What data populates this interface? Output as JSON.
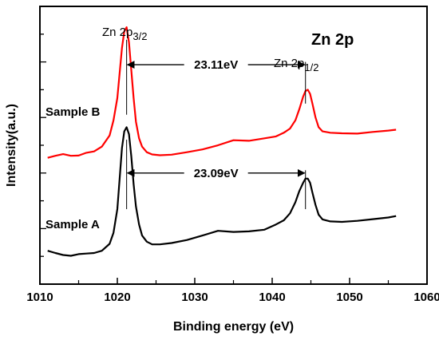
{
  "chart_data": {
    "type": "line",
    "title": "Zn 2p",
    "xlabel": "Binding energy (eV)",
    "ylabel": "Intensity(a.u.)",
    "xlim": [
      1010,
      1060
    ],
    "ylim": [
      0,
      100
    ],
    "x_ticks": [
      "1010",
      "1020",
      "1030",
      "1040",
      "1050",
      "1060"
    ],
    "grid": false,
    "series": [
      {
        "name": "Sample B",
        "color": "#ff0000",
        "x": [
          1011,
          1012,
          1013,
          1014,
          1015,
          1016,
          1017,
          1018,
          1019,
          1019.5,
          1020,
          1020.3,
          1020.6,
          1020.9,
          1021.2,
          1021.5,
          1021.8,
          1022.1,
          1022.4,
          1022.8,
          1023.2,
          1023.8,
          1024.5,
          1025.5,
          1027,
          1029,
          1031,
          1033,
          1035,
          1037,
          1039,
          1040.5,
          1041.5,
          1042.3,
          1043,
          1043.5,
          1044,
          1044.3,
          1044.6,
          1044.9,
          1045.2,
          1045.6,
          1046,
          1046.5,
          1047.5,
          1049,
          1051,
          1053,
          1055,
          1056
        ],
        "y": [
          45.5,
          46.2,
          46.8,
          46.2,
          46.3,
          47.3,
          47.8,
          49.5,
          53.5,
          59,
          67,
          76,
          85,
          91,
          92.5,
          87,
          77,
          67,
          58.5,
          52.5,
          49.5,
          47.5,
          46.7,
          46.4,
          46.6,
          47.5,
          48.5,
          50,
          51.8,
          51.6,
          52.5,
          53.2,
          54.5,
          56,
          59,
          63,
          67.5,
          69.5,
          70,
          68.5,
          65,
          60,
          56.5,
          55,
          54.5,
          54.3,
          54.2,
          54.8,
          55.3,
          55.6
        ]
      },
      {
        "name": "Sample A",
        "color": "#000000",
        "x": [
          1011,
          1012,
          1013,
          1014,
          1015,
          1016,
          1017,
          1018,
          1019,
          1019.5,
          1020,
          1020.3,
          1020.6,
          1020.9,
          1021.2,
          1021.5,
          1021.8,
          1022.1,
          1022.4,
          1022.8,
          1023.2,
          1023.8,
          1024.5,
          1025.5,
          1027,
          1029,
          1031,
          1033,
          1035,
          1037,
          1039,
          1040.5,
          1041.5,
          1042.3,
          1043,
          1043.5,
          1044,
          1044.3,
          1044.6,
          1044.9,
          1045.2,
          1045.6,
          1046,
          1046.5,
          1047.5,
          1049,
          1051,
          1053,
          1055,
          1056
        ],
        "y": [
          12,
          11.2,
          10.5,
          10.2,
          10.8,
          11,
          11.2,
          12,
          14.5,
          18.5,
          27,
          38,
          49,
          55,
          56.5,
          54,
          46,
          36,
          28,
          21.5,
          17.5,
          15.3,
          14.3,
          14.3,
          14.8,
          15.9,
          17.5,
          19.2,
          18.8,
          19,
          19.6,
          21.5,
          23,
          25.5,
          29.5,
          33.5,
          36.5,
          38,
          38,
          36.5,
          33,
          28.5,
          25,
          23.3,
          22.6,
          22.4,
          22.8,
          23.4,
          24,
          24.5
        ]
      }
    ],
    "annotations": [
      {
        "text": "23.11eV",
        "x_start": 1021.2,
        "x_end": 1044.3,
        "y": 79
      },
      {
        "text": "23.09eV",
        "x_start": 1021.2,
        "x_end": 1044.3,
        "y": 40
      }
    ],
    "labels": {
      "sample_b": "Sample B",
      "sample_a": "Sample A",
      "zn_main": "Zn 2p",
      "p32_sub": "3/2",
      "p12_sub": "1/2"
    }
  }
}
